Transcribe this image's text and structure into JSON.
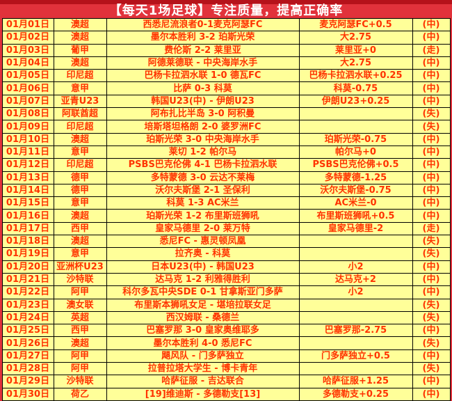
{
  "header": {
    "title": "【每天1场足球】专注质量，提高正确率"
  },
  "colors": {
    "page-red": "#e1323b",
    "strip-red": "#b5121a",
    "cell-yellow": "#ffff99",
    "result-orange": "#f1bf53",
    "draw-green": "#00a84f",
    "text-red": "#ff3300",
    "text-blue": "#0000cc",
    "text-black": "#000000"
  },
  "result_legend": {
    "win": "(中)",
    "draw": "(走)",
    "lose": "(失)"
  },
  "rows": [
    {
      "date": "01月01日",
      "league": "澳超",
      "match": "西悉尼流浪者0-1麦克阿瑟FC",
      "pick": "麦克阿瑟FC+0.5",
      "result": "(中)",
      "outcome": "win"
    },
    {
      "date": "01月02日",
      "league": "澳超",
      "match": "墨尔本胜利 3-2 珀斯光荣",
      "pick": "大2.75",
      "result": "(中)",
      "outcome": "win"
    },
    {
      "date": "01月03日",
      "league": "葡甲",
      "match": "费伦斯 2-2 莱里亚",
      "pick": "莱里亚+0",
      "result": "(走)",
      "outcome": "draw"
    },
    {
      "date": "01月04日",
      "league": "澳超",
      "match": "阿德莱德联 - 中央海岸水手",
      "pick": "大2.75",
      "result": "(中)",
      "outcome": "win"
    },
    {
      "date": "01月05日",
      "league": "印尼超",
      "match": "巴杨卡拉泗水联 1-0 德瓦FC",
      "pick": "巴杨卡拉泗水联+0.25",
      "result": "(中)",
      "outcome": "win"
    },
    {
      "date": "01月06日",
      "league": "意甲",
      "match": "比萨 0-3 科莫",
      "pick": "科莫-0.75",
      "result": "(中)",
      "outcome": "win"
    },
    {
      "date": "01月07日",
      "league": "亚青U23",
      "match": "韩国U23(中) - 伊朗U23",
      "pick": "伊朗U23+0.25",
      "result": "(中)",
      "outcome": "win"
    },
    {
      "date": "01月08日",
      "league": "阿联酋超",
      "match": "阿布扎比半岛 3-0 阿积曼",
      "pick": "",
      "result": "(失)",
      "outcome": "lose"
    },
    {
      "date": "01月09日",
      "league": "印尼超",
      "match": "培斯塔坦格朗 2-0 婆罗洲FC",
      "pick": "",
      "result": "(失)",
      "outcome": "lose"
    },
    {
      "date": "01月10日",
      "league": "澳超",
      "match": "珀斯光荣 3-0 中央海岸水手",
      "pick": "珀斯光荣-0.75",
      "result": "(中)",
      "outcome": "win"
    },
    {
      "date": "01月11日",
      "league": "意甲",
      "match": "莱切 1-2 帕尔马",
      "pick": "帕尔马+0",
      "result": "(中)",
      "outcome": "win"
    },
    {
      "date": "01月12日",
      "league": "印尼超",
      "match": "PSBS巴克伦佛 4-1 巴杨卡拉泗水联",
      "pick": "PSBS巴克伦佛+0.5",
      "result": "(中)",
      "outcome": "win"
    },
    {
      "date": "01月13日",
      "league": "德甲",
      "match": "多特蒙德 3-0 云达不莱梅",
      "pick": "多特蒙德-1.25",
      "result": "(中)",
      "outcome": "win"
    },
    {
      "date": "01月14日",
      "league": "德甲",
      "match": "沃尔夫斯堡 2-1 圣保利",
      "pick": "沃尔夫斯堡-0.75",
      "result": "(中)",
      "outcome": "win"
    },
    {
      "date": "01月15日",
      "league": "意甲",
      "match": "科莫 1-3 AC米兰",
      "pick": "AC米兰-0",
      "result": "(中)",
      "outcome": "win"
    },
    {
      "date": "01月16日",
      "league": "澳超",
      "match": "珀斯光荣 1-2 布里斯班狮吼",
      "pick": "布里斯班狮吼+0.5",
      "result": "(中)",
      "outcome": "win"
    },
    {
      "date": "01月17日",
      "league": "西甲",
      "match": "皇家马德里 2-0 莱万特",
      "pick": "皇家马德里-2",
      "result": "(走)",
      "outcome": "draw"
    },
    {
      "date": "01月18日",
      "league": "澳超",
      "match": "悉尼FC - 惠灵顿凤凰",
      "pick": "",
      "result": "(失)",
      "outcome": "lose"
    },
    {
      "date": "01月19日",
      "league": "意甲",
      "match": "拉齐奥 - 科莫",
      "pick": "",
      "result": "(失)",
      "outcome": "lose"
    },
    {
      "date": "01月20日",
      "league": "亚洲杯U23",
      "match": "日本U23(中) - 韩国U23",
      "pick": "小2",
      "result": "(中)",
      "outcome": "win"
    },
    {
      "date": "01月21日",
      "league": "沙特联",
      "match": "达马克 1-2 利雅得胜利",
      "pick": "达马克+2",
      "result": "(中)",
      "outcome": "win"
    },
    {
      "date": "01月22日",
      "league": "阿甲",
      "match": "科尔多瓦中央SDE 0-1 甘拿斯亚门多萨",
      "pick": "小2",
      "result": "(中)",
      "outcome": "win"
    },
    {
      "date": "01月23日",
      "league": "澳女联",
      "match": "布里斯本狮吼女足 - 堪培拉联女足",
      "pick": "",
      "result": "(失)",
      "outcome": "lose"
    },
    {
      "date": "01月24日",
      "league": "英超",
      "match": "西汉姆联 - 桑德兰",
      "pick": "",
      "result": "(失)",
      "outcome": "lose"
    },
    {
      "date": "01月25日",
      "league": "西甲",
      "match": "巴塞罗那 3-0 皇家奥维耶多",
      "pick": "巴塞罗那-2.75",
      "result": "(中)",
      "outcome": "win"
    },
    {
      "date": "01月26日",
      "league": "澳超",
      "match": "墨尔本胜利 4-0 悉尼FC",
      "pick": "",
      "result": "(失)",
      "outcome": "lose"
    },
    {
      "date": "01月27日",
      "league": "阿甲",
      "match": "飓风队 - 门多萨独立",
      "pick": "门多萨独立+0.5",
      "result": "(中)",
      "outcome": "win"
    },
    {
      "date": "01月28日",
      "league": "阿甲",
      "match": "拉普拉塔大学生 - 博卡青年",
      "pick": "",
      "result": "(失)",
      "outcome": "lose"
    },
    {
      "date": "01月29日",
      "league": "沙特联",
      "match": "哈萨征服 - 吉达联合",
      "pick": "哈萨征服+1.25",
      "result": "(中)",
      "outcome": "win"
    },
    {
      "date": "01月30日",
      "league": "荷乙",
      "match": "[19]维迪斯 - 多德勒支[13]",
      "pick": "多德勒支+0.25",
      "result": "(中)",
      "outcome": "win"
    }
  ]
}
